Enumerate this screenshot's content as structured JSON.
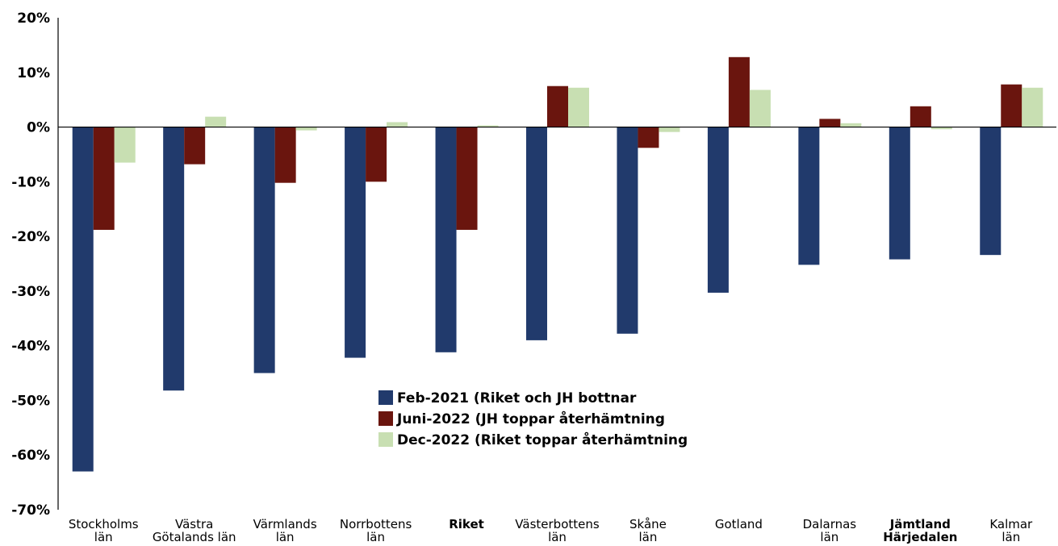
{
  "chart_data": {
    "type": "bar",
    "categories": [
      {
        "lines": [
          "Stockholms",
          "län"
        ],
        "bold": false
      },
      {
        "lines": [
          "Västra",
          "Götalands län"
        ],
        "bold": false
      },
      {
        "lines": [
          "Värmlands",
          "län"
        ],
        "bold": false
      },
      {
        "lines": [
          "Norrbottens",
          "län"
        ],
        "bold": false
      },
      {
        "lines": [
          "Riket"
        ],
        "bold": true
      },
      {
        "lines": [
          "Västerbottens",
          "län"
        ],
        "bold": false
      },
      {
        "lines": [
          "Skåne",
          "län"
        ],
        "bold": false
      },
      {
        "lines": [
          "Gotland"
        ],
        "bold": false
      },
      {
        "lines": [
          "Dalarnas",
          "län"
        ],
        "bold": false
      },
      {
        "lines": [
          "Jämtland",
          "Härjedalen"
        ],
        "bold": true
      },
      {
        "lines": [
          "Kalmar",
          "län"
        ],
        "bold": false
      }
    ],
    "series": [
      {
        "name": "Feb-2021 (Riket och JH bottnar",
        "color": "#213a6c",
        "values": [
          -63,
          -48.2,
          -45,
          -42.2,
          -41.2,
          -39,
          -37.8,
          -30.3,
          -25.2,
          -24.2,
          -23.4
        ]
      },
      {
        "name": "Juni-2022 (JH toppar återhämtning",
        "color": "#6a150e",
        "values": [
          -18.8,
          -6.8,
          -10.2,
          -10,
          -18.8,
          7.5,
          -3.8,
          12.8,
          1.5,
          3.8,
          7.8
        ]
      },
      {
        "name": "Dec-2022 (Riket toppar återhämtning",
        "color": "#c8dfb2",
        "values": [
          -6.5,
          1.9,
          -0.6,
          0.9,
          0.3,
          7.2,
          -0.9,
          6.8,
          0.7,
          -0.4,
          7.2
        ]
      }
    ],
    "ylim": [
      -70,
      20
    ],
    "yticks": [
      20,
      10,
      0,
      -10,
      -20,
      -30,
      -40,
      -50,
      -60,
      -70
    ],
    "tick_suffix": "%",
    "legend_position": "center",
    "grid": false
  }
}
